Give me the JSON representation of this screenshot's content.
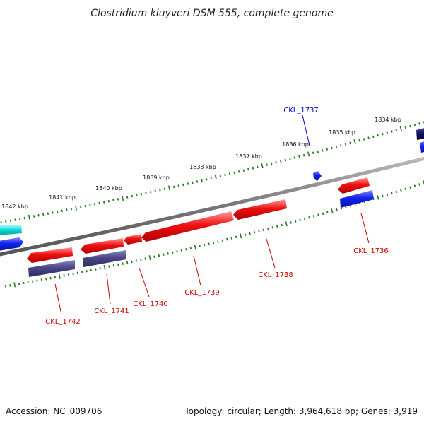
{
  "title": "Clostridium kluyveri DSM 555, complete genome",
  "footer": {
    "accession": "Accession: NC_009706",
    "topology": "Topology: circular; Length: 3,964,618 bp; Genes: 3,919"
  },
  "colors": {
    "forward_gene": "#ee1111",
    "reverse_gene": "#1122ee",
    "reverse_gene_alt": "#4b4788",
    "cyan_gene": "#11dddd",
    "navy_gene": "#101060",
    "backbone": "#777777",
    "ticks": "#2a7a2a",
    "label_red": "#cc0000",
    "label_blue": "#0000cc"
  },
  "kbp_labels": [
    "1834 kbp",
    "1835 kbp",
    "1836 kbp",
    "1837 kbp",
    "1838 kbp",
    "1839 kbp",
    "1840 kbp",
    "1841 kbp",
    "1842 kbp"
  ],
  "gene_labels": [
    {
      "text": "CKL_1736",
      "color": "red"
    },
    {
      "text": "CKL_1737",
      "color": "blue"
    },
    {
      "text": "CKL_1738",
      "color": "red"
    },
    {
      "text": "CKL_1739",
      "color": "red"
    },
    {
      "text": "CKL_1740",
      "color": "red"
    },
    {
      "text": "CKL_1741",
      "color": "red"
    },
    {
      "text": "CKL_1742",
      "color": "red"
    }
  ]
}
